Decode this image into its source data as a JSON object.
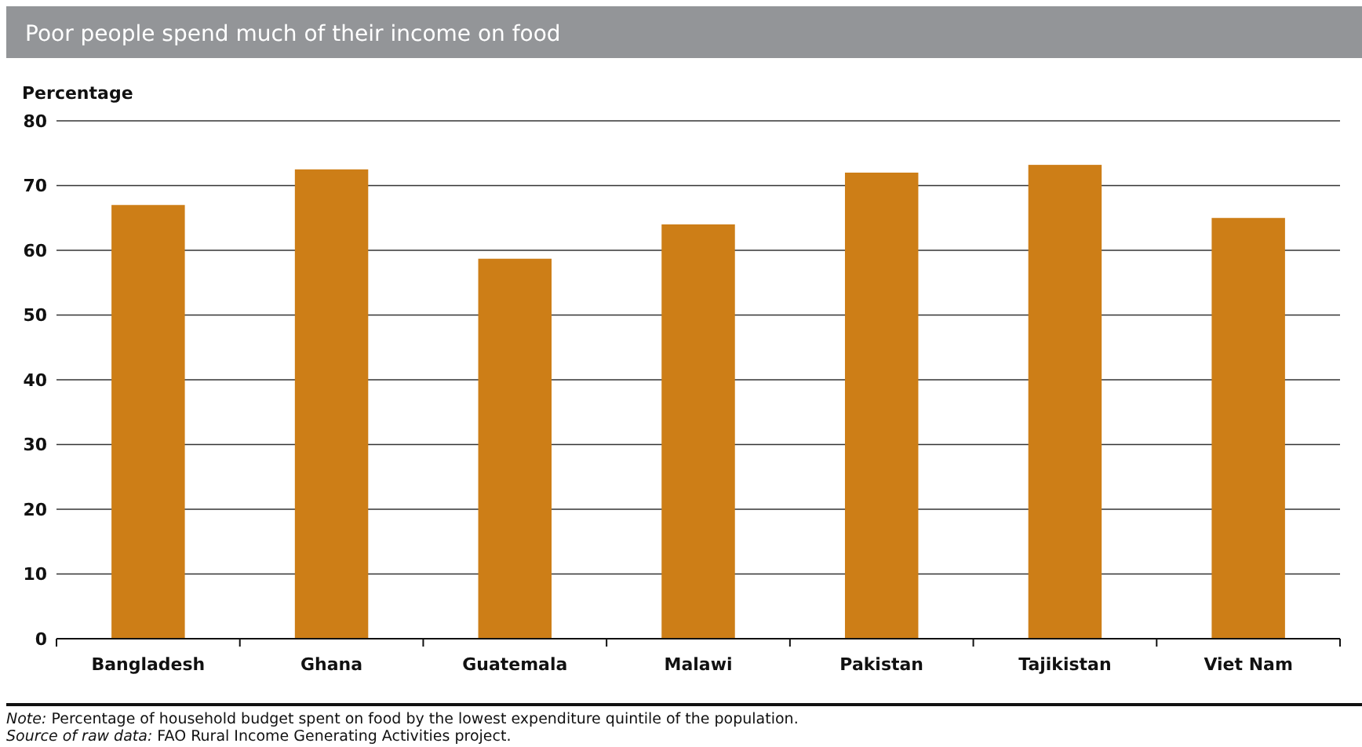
{
  "chart_data": {
    "type": "bar",
    "title": "Poor people spend much of their income on food",
    "ylabel": "Percentage",
    "categories": [
      "Bangladesh",
      "Ghana",
      "Guatemala",
      "Malawi",
      "Pakistan",
      "Tajikistan",
      "Viet Nam"
    ],
    "values": [
      67,
      72.5,
      58.7,
      64,
      72,
      73.2,
      65
    ],
    "color": "#cd7e17",
    "ylim": [
      0,
      80
    ],
    "yticks": [
      0,
      10,
      20,
      30,
      40,
      50,
      60,
      70,
      80
    ],
    "grid": "y",
    "annotations": [
      "Note: Percentage of household budget spent on food by the lowest expenditure quintile of the population.",
      "Source of raw data: FAO Rural Income Generating Activities project."
    ]
  }
}
